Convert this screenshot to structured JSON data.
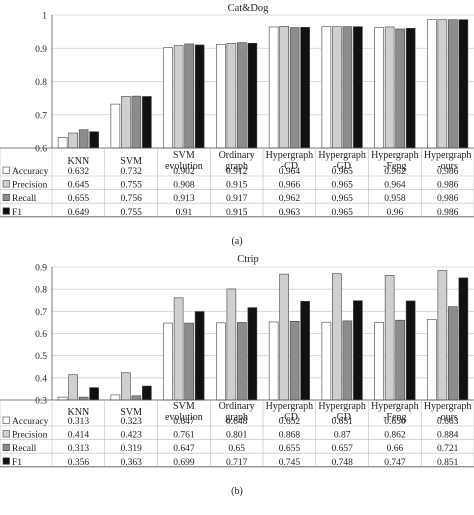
{
  "chart_data": [
    {
      "type": "bar",
      "title": "Cat&Dog",
      "panel_label": "(a)",
      "categories": [
        [
          "KNN"
        ],
        [
          "SVM"
        ],
        [
          "SVM",
          "evolution"
        ],
        [
          "Ordinary",
          "graph"
        ],
        [
          "Hypergraph",
          "-CD"
        ],
        [
          "Hypergraph",
          "-GD"
        ],
        [
          "Hypergraph",
          "-Feng"
        ],
        [
          "Hypergraph",
          "-ours"
        ]
      ],
      "ylim": [
        0.6,
        1.0
      ],
      "yticks": [
        "0.6",
        "0.7",
        "0.8",
        "0.9",
        "1"
      ],
      "grid": true,
      "series": [
        {
          "name": "Accuracy",
          "color": "#ffffff",
          "values": [
            0.632,
            0.732,
            0.902,
            0.912,
            0.964,
            0.965,
            0.962,
            0.986
          ],
          "labels": [
            "0.632",
            "0.732",
            "0.902",
            "0.912",
            "0.964",
            "0.965",
            "0.962",
            "0.986"
          ]
        },
        {
          "name": "Precision",
          "color": "#cfcfcf",
          "values": [
            0.645,
            0.755,
            0.908,
            0.915,
            0.966,
            0.965,
            0.964,
            0.986
          ],
          "labels": [
            "0.645",
            "0.755",
            "0.908",
            "0.915",
            "0.966",
            "0.965",
            "0.964",
            "0.986"
          ]
        },
        {
          "name": "Recall",
          "color": "#8c8c8c",
          "values": [
            0.655,
            0.756,
            0.913,
            0.917,
            0.962,
            0.965,
            0.958,
            0.986
          ],
          "labels": [
            "0.655",
            "0.756",
            "0.913",
            "0.917",
            "0.962",
            "0.965",
            "0.958",
            "0.986"
          ]
        },
        {
          "name": "F1",
          "color": "#111111",
          "values": [
            0.649,
            0.755,
            0.91,
            0.915,
            0.963,
            0.965,
            0.96,
            0.986
          ],
          "labels": [
            "0.649",
            "0.755",
            "0.91",
            "0.915",
            "0.963",
            "0.965",
            "0.96",
            "0.986"
          ]
        }
      ]
    },
    {
      "type": "bar",
      "title": "Ctrip",
      "panel_label": "(b)",
      "categories": [
        [
          "KNN"
        ],
        [
          "SVM"
        ],
        [
          "SVM",
          "evolution"
        ],
        [
          "Ordinary",
          "graph"
        ],
        [
          "Hypergraph",
          "-CD"
        ],
        [
          "Hypergraph",
          "-GD"
        ],
        [
          "Hypergraph",
          "-Feng"
        ],
        [
          "Hypergraph",
          "-ours"
        ]
      ],
      "ylim": [
        0.3,
        0.9
      ],
      "yticks": [
        "0.3",
        "0.4",
        "0.5",
        "0.6",
        "0.7",
        "0.8",
        "0.9"
      ],
      "grid": true,
      "series": [
        {
          "name": "Accuracy",
          "color": "#ffffff",
          "values": [
            0.313,
            0.323,
            0.647,
            0.648,
            0.652,
            0.651,
            0.65,
            0.663
          ],
          "labels": [
            "0.313",
            "0.323",
            "0.647",
            "0.648",
            "0.652",
            "0.651",
            "0.650",
            "0.663"
          ]
        },
        {
          "name": "Precision",
          "color": "#cfcfcf",
          "values": [
            0.414,
            0.423,
            0.761,
            0.801,
            0.868,
            0.87,
            0.862,
            0.884
          ],
          "labels": [
            "0.414",
            "0.423",
            "0.761",
            "0.801",
            "0.868",
            "0.87",
            "0.862",
            "0.884"
          ]
        },
        {
          "name": "Recall",
          "color": "#8c8c8c",
          "values": [
            0.313,
            0.319,
            0.647,
            0.65,
            0.655,
            0.657,
            0.66,
            0.721
          ],
          "labels": [
            "0.313",
            "0.319",
            "0.647",
            "0.65",
            "0.655",
            "0.657",
            "0.66",
            "0.721"
          ]
        },
        {
          "name": "F1",
          "color": "#111111",
          "values": [
            0.356,
            0.363,
            0.699,
            0.717,
            0.745,
            0.748,
            0.747,
            0.851
          ],
          "labels": [
            "0.356",
            "0.363",
            "0.699",
            "0.717",
            "0.745",
            "0.748",
            "0.747",
            "0.851"
          ]
        }
      ]
    }
  ]
}
